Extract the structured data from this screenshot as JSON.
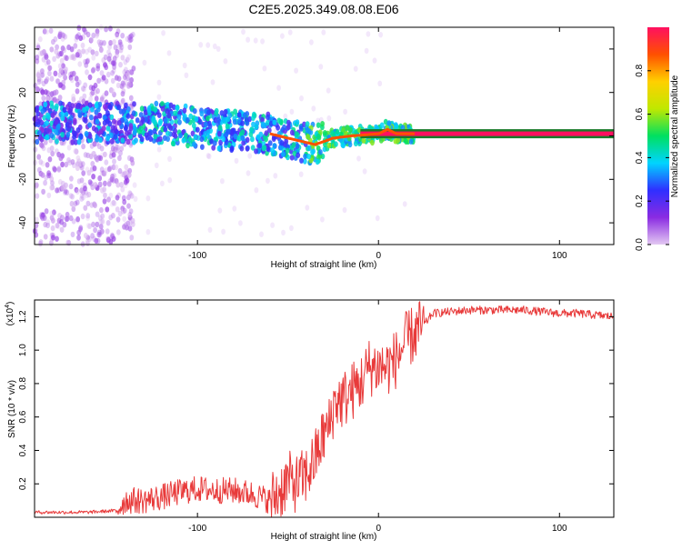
{
  "title": "C2E5.2025.349.08.08.E06",
  "colors": {
    "signal_line": "#e83a3a",
    "axis": "#000000",
    "colorbar_stops": [
      "#e3c8f2",
      "#8a2be2",
      "#2f2fff",
      "#00d4ff",
      "#00e060",
      "#c0e800",
      "#ffd000",
      "#ff5000",
      "#ff1060"
    ]
  },
  "chart_data": [
    {
      "type": "heatmap",
      "xlabel": "Height of straight line (km)",
      "ylabel": "Frequency (Hz)",
      "xlim": [
        -190,
        130
      ],
      "ylim": [
        -50,
        50
      ],
      "xticks": [
        -100,
        0,
        100
      ],
      "yticks": [
        -40,
        -20,
        0,
        20,
        40
      ],
      "colorbar": {
        "label": "Normalized spectral amplitude",
        "range": [
          0,
          1
        ],
        "ticks": [
          0.0,
          0.2,
          0.4,
          0.6,
          0.8
        ]
      },
      "ridge": {
        "description_points": [
          {
            "x": -190,
            "y": 6
          },
          {
            "x": -150,
            "y": 6
          },
          {
            "x": -120,
            "y": 6
          },
          {
            "x": -90,
            "y": 3
          },
          {
            "x": -60,
            "y": 1
          },
          {
            "x": -45,
            "y": -2
          },
          {
            "x": -35,
            "y": -4
          },
          {
            "x": -25,
            "y": -1
          },
          {
            "x": -15,
            "y": 0
          },
          {
            "x": 0,
            "y": 1
          },
          {
            "x": 5,
            "y": 3
          },
          {
            "x": 10,
            "y": 1
          },
          {
            "x": 130,
            "y": 1
          }
        ]
      }
    },
    {
      "type": "line",
      "xlabel": "Height of straight line (km)",
      "ylabel": "SNR (10 * v/v)",
      "yscale_label": "(x10",
      "yscale_exp": "4",
      "yscale_close": ")",
      "xlim": [
        -190,
        130
      ],
      "ylim": [
        0,
        1.3
      ],
      "xticks": [
        -100,
        0,
        100
      ],
      "yticks": [
        0.2,
        0.4,
        0.6,
        0.8,
        1.0,
        1.2
      ],
      "series": [
        {
          "name": "SNR",
          "x": [
            -190,
            -175,
            -160,
            -145,
            -140,
            -130,
            -120,
            -110,
            -100,
            -90,
            -80,
            -70,
            -60,
            -55,
            -50,
            -45,
            -40,
            -35,
            -30,
            -27,
            -24,
            -20,
            -15,
            -10,
            -5,
            0,
            5,
            10,
            15,
            20,
            25,
            30,
            40,
            50,
            60,
            70,
            80,
            90,
            100,
            110,
            120,
            130
          ],
          "y": [
            0.03,
            0.03,
            0.03,
            0.04,
            0.1,
            0.1,
            0.12,
            0.15,
            0.17,
            0.16,
            0.16,
            0.14,
            0.1,
            0.15,
            0.22,
            0.2,
            0.25,
            0.35,
            0.5,
            0.55,
            0.7,
            0.7,
            0.75,
            0.8,
            0.9,
            0.9,
            0.9,
            0.95,
            1.05,
            1.1,
            1.15,
            1.22,
            1.23,
            1.24,
            1.24,
            1.24,
            1.24,
            1.23,
            1.22,
            1.22,
            1.21,
            1.2
          ]
        }
      ]
    }
  ]
}
